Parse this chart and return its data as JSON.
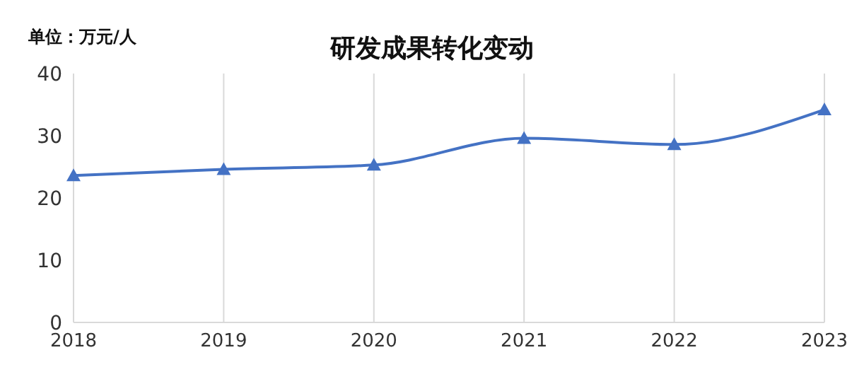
{
  "chart_data": {
    "type": "line",
    "title": "研发成果转化变动",
    "ylabel": "单位：万元/人",
    "categories": [
      "2018",
      "2019",
      "2020",
      "2021",
      "2022",
      "2023"
    ],
    "series": [
      {
        "color": "#4472c4",
        "values": [
          23.6,
          24.6,
          25.3,
          29.6,
          28.6,
          34.2
        ]
      }
    ],
    "ylim": [
      0,
      40
    ],
    "yticks": [
      0,
      10,
      20,
      30,
      40
    ],
    "grid": "x",
    "marker": "triangle",
    "line_style": "solid"
  }
}
